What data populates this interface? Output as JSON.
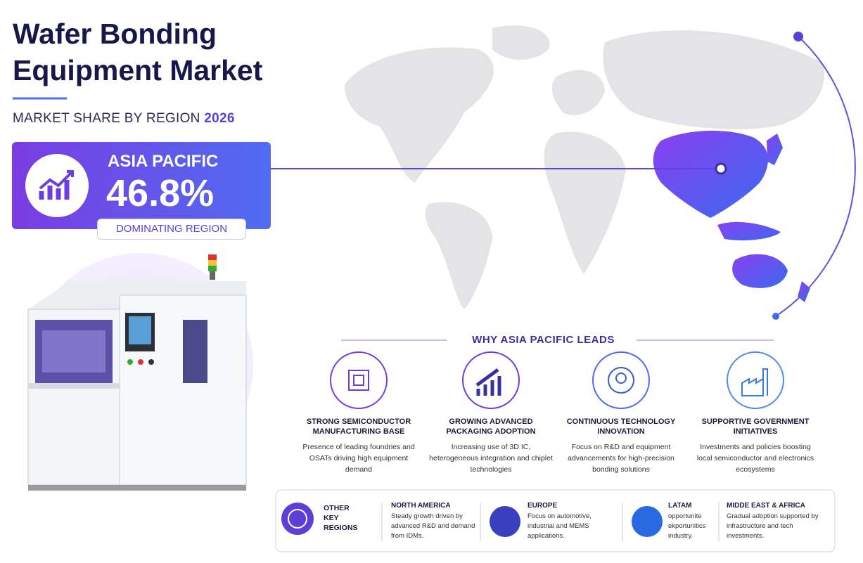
{
  "header": {
    "title_lines": [
      "Wafer Bonding",
      "Equipment Market"
    ],
    "subtitle": "MARKET SHARE BY REGION",
    "year": "2026"
  },
  "highlight": {
    "region": "ASIA PACIFIC",
    "share": "46.8%",
    "badge": "DOMINATING REGION"
  },
  "why": {
    "heading": "WHY ASIA PACIFIC LEADS",
    "factors": [
      {
        "title": "STRONG SEMICONDUCTOR MANUFACTURING BASE",
        "text": "Presence of leading foundries and OSATs driving high equipment demand"
      },
      {
        "title": "GROWING ADVANCED PACKAGING ADOPTION",
        "text": "Increasing use of 3D IC, heterogeneous integration and chiplet technologies"
      },
      {
        "title": "CONTINUOUS TECHNOLOGY INNOVATION",
        "text": "Focus on R&D and equipment advancements for high-precision bonding solutions"
      },
      {
        "title": "SUPPORTIVE GOVERNMENT INITIATIVES",
        "text": "Investments and policies boosting local semiconductor and electronics ecosystems"
      }
    ]
  },
  "other_regions": {
    "label": "OTHER KEY REGIONS",
    "regions": [
      {
        "name": "NORTH AMERICA",
        "text": "Steady growth driven by advanced R&D and demand from IDMs."
      },
      {
        "name": "EUROPE",
        "text": "Focus on automotive, industrial and MEMS applications."
      },
      {
        "name": "LATAM",
        "text": "opportunite ekportunitics industry."
      },
      {
        "name": "MIDDE EAST & AFRICA",
        "text": "Gradual adoption supported by infrastructure and tech investments."
      }
    ]
  }
}
